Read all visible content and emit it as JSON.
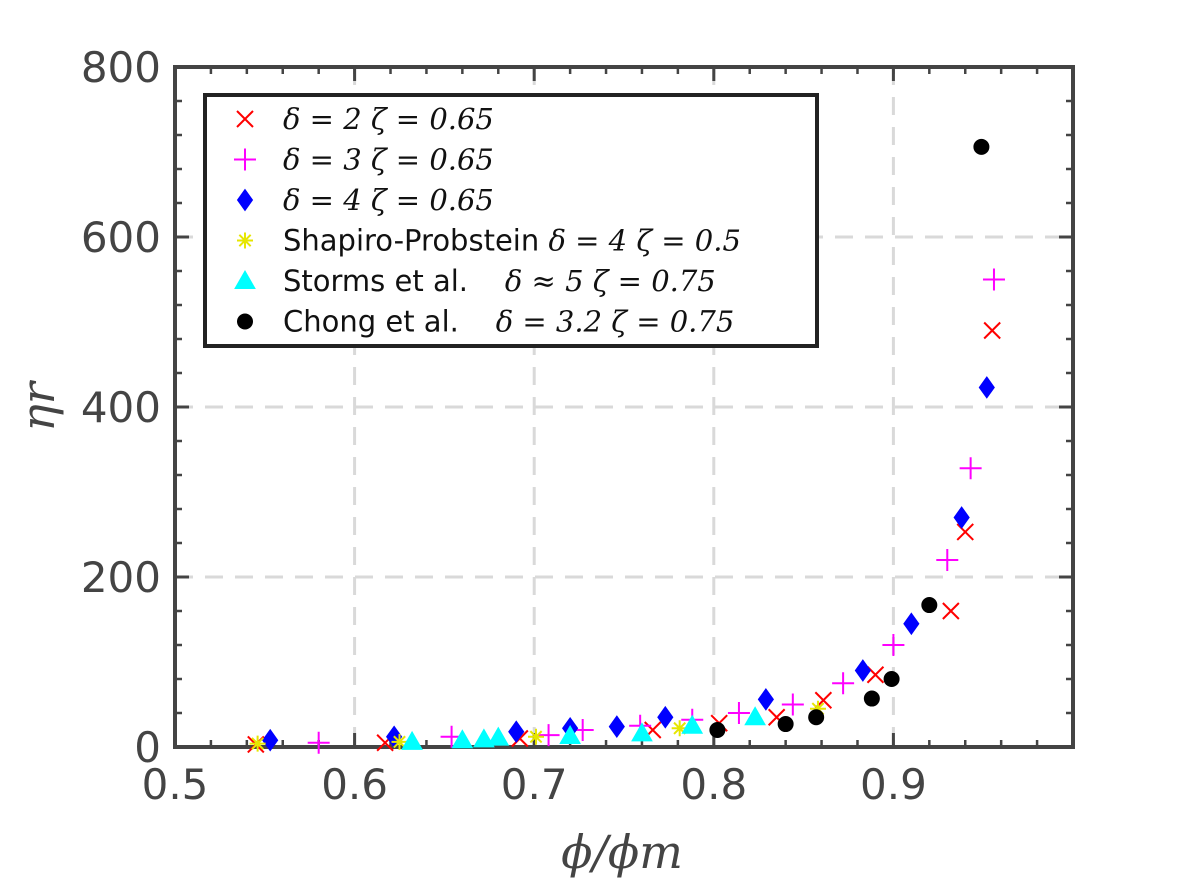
{
  "chart_data": {
    "type": "scatter",
    "xlabel": "ϕ/ϕm",
    "ylabel": "ηr",
    "xlim": [
      0.5,
      1.0
    ],
    "ylim": [
      0,
      800
    ],
    "xticks": [
      0.5,
      0.6,
      0.7,
      0.8,
      0.9
    ],
    "xtick_labels": [
      "0.5",
      "0.6",
      "0.7",
      "0.8",
      "0.9"
    ],
    "yticks": [
      0,
      200,
      400,
      600,
      800
    ],
    "ytick_labels": [
      "0",
      "200",
      "400",
      "600",
      "800"
    ],
    "grid": true,
    "legend_position": "top-left",
    "series": [
      {
        "name": "δ = 2 ζ = 0.65",
        "marker": "x",
        "color": "#ff0000",
        "x": [
          0.545,
          0.617,
          0.692,
          0.766,
          0.803,
          0.835,
          0.861,
          0.89,
          0.932,
          0.94,
          0.955
        ],
        "y": [
          3,
          5,
          10,
          20,
          28,
          35,
          55,
          85,
          160,
          253,
          490
        ]
      },
      {
        "name": "δ = 3 ζ = 0.65",
        "marker": "+",
        "color": "#ff00ff",
        "x": [
          0.58,
          0.654,
          0.708,
          0.727,
          0.759,
          0.788,
          0.814,
          0.844,
          0.872,
          0.9,
          0.93,
          0.943,
          0.956
        ],
        "y": [
          5,
          12,
          14,
          20,
          25,
          32,
          40,
          50,
          75,
          120,
          220,
          328,
          550
        ]
      },
      {
        "name": "δ = 4 ζ = 0.65",
        "marker": "diamond",
        "color": "#0000ff",
        "x": [
          0.553,
          0.622,
          0.69,
          0.72,
          0.746,
          0.773,
          0.829,
          0.883,
          0.91,
          0.938,
          0.952
        ],
        "y": [
          8,
          12,
          18,
          22,
          24,
          35,
          56,
          90,
          145,
          270,
          423
        ]
      },
      {
        "name": "Shapiro-Probstein δ = 4 ζ = 0.5",
        "marker": "asterisk",
        "color": "#e6e600",
        "x": [
          0.546,
          0.625,
          0.701,
          0.781,
          0.858
        ],
        "y": [
          4,
          6,
          12,
          22,
          45
        ]
      },
      {
        "name": "Storms et al.    δ ≈ 5 ζ = 0.75",
        "marker": "triangle",
        "color": "#00ffff",
        "x": [
          0.632,
          0.66,
          0.672,
          0.68,
          0.72,
          0.76,
          0.788,
          0.823
        ],
        "y": [
          6,
          8,
          9,
          11,
          13,
          16,
          25,
          35
        ]
      },
      {
        "name": "Chong et al.    δ = 3.2 ζ = 0.75",
        "marker": "circle",
        "color": "#000000",
        "x": [
          0.802,
          0.84,
          0.857,
          0.888,
          0.899,
          0.92,
          0.949
        ],
        "y": [
          20,
          27,
          35,
          57,
          80,
          167,
          706
        ]
      }
    ],
    "legend_entries": [
      {
        "prefix": "",
        "math": "δ = 2 ζ = 0.65"
      },
      {
        "prefix": "",
        "math": "δ = 3 ζ = 0.65"
      },
      {
        "prefix": "",
        "math": "δ = 4 ζ = 0.65"
      },
      {
        "prefix": "Shapiro-Probstein ",
        "math": "δ = 4 ζ = 0.5"
      },
      {
        "prefix": "Storms et al.    ",
        "math": "δ ≈ 5 ζ = 0.75"
      },
      {
        "prefix": "Chong et al.    ",
        "math": "δ = 3.2 ζ = 0.75"
      }
    ]
  }
}
